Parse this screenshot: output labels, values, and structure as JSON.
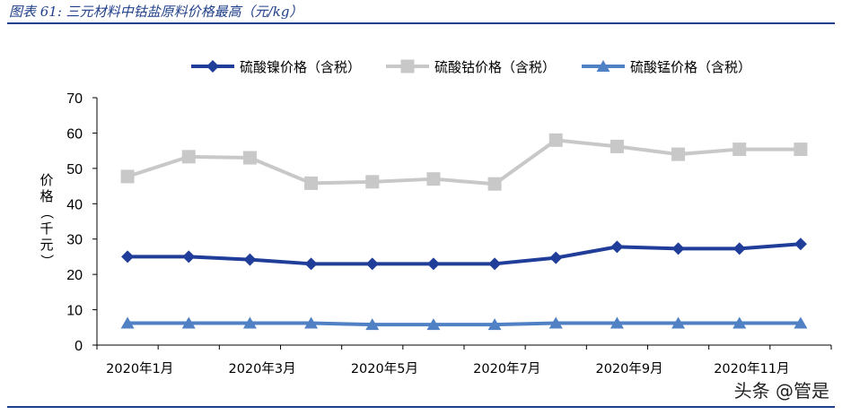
{
  "title": "图表 61:  三元材料中钴盐原料价格最高（元/kg）",
  "watermark": "头条 @管是",
  "chart_data": {
    "type": "line",
    "ylabel": "价格（千元）",
    "ylim": [
      0,
      70
    ],
    "yticks": [
      0,
      10,
      20,
      30,
      40,
      50,
      60,
      70
    ],
    "x_tick_labels": [
      "2020年1月",
      "2020年3月",
      "2020年5月",
      "2020年7月",
      "2020年9月",
      "2020年11月"
    ],
    "grid": false,
    "legend_position": "top",
    "series": [
      {
        "name": "硫酸镍价格（含税）",
        "marker": "diamond",
        "color": "#1f3d99",
        "values": [
          25,
          25,
          24.2,
          23,
          23,
          23,
          23,
          24.7,
          27.8,
          27.3,
          27.3,
          28.6
        ]
      },
      {
        "name": "硫酸钴价格（含税）",
        "marker": "square",
        "color": "#c8c8c8",
        "values": [
          47.7,
          53.3,
          53,
          45.8,
          46.2,
          47,
          45.6,
          58,
          56.2,
          54,
          55.4,
          55.4
        ]
      },
      {
        "name": "硫酸锰价格（含税）",
        "marker": "triangle",
        "color": "#4f81c4",
        "values": [
          6.2,
          6.2,
          6.2,
          6.2,
          5.8,
          5.8,
          5.8,
          6.2,
          6.2,
          6.2,
          6.2,
          6.2
        ]
      }
    ]
  }
}
